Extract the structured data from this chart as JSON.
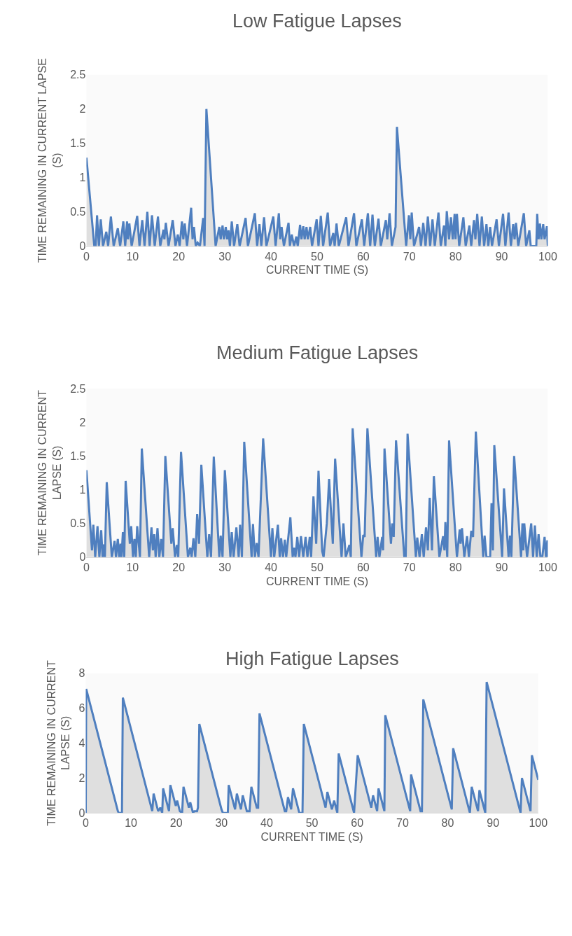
{
  "chart_data": [
    {
      "type": "area",
      "title": "Low Fatigue Lapses",
      "xlabel": "CURRENT TIME (S)",
      "ylabel": "TIME REMAINING IN CURRENT LAPSE (S)",
      "color": "#4f7fbf",
      "xlim": [
        0,
        100
      ],
      "xticks": [
        0,
        10,
        20,
        30,
        40,
        50,
        60,
        70,
        80,
        90,
        100
      ],
      "ylim": [
        0,
        2.5
      ],
      "yticks": [
        0,
        0.5,
        1,
        1.5,
        2,
        2.5
      ],
      "x": [
        0,
        1.7,
        2,
        2.3,
        2.7,
        3.1,
        3.6,
        4.3,
        4.7,
        5.3,
        5.9,
        6.8,
        7.3,
        8,
        8.4,
        8.8,
        9,
        9.3,
        9.8,
        11,
        11.5,
        12.1,
        12.6,
        13.2,
        13.7,
        14.2,
        14.8,
        15.5,
        16,
        16.7,
        16.9,
        17.2,
        17.8,
        18.7,
        19.3,
        19.8,
        20.2,
        20.7,
        21,
        21.3,
        21.8,
        22.7,
        23,
        23.3,
        23.7,
        24.1,
        24.6,
        25.3,
        25.6,
        26,
        28,
        28.8,
        29.1,
        29.5,
        29.8,
        30.2,
        30.5,
        30.8,
        31.1,
        31.5,
        32,
        32.7,
        33.2,
        34.5,
        35,
        36.5,
        37,
        37.5,
        37.9,
        38.5,
        39,
        40.5,
        41,
        41.7,
        42,
        42.3,
        42.8,
        43.8,
        44.1,
        44.5,
        45,
        45.5,
        45.8,
        46.3,
        46.6,
        47,
        47.3,
        47.7,
        48,
        48.5,
        48.9,
        49.9,
        50.3,
        50.8,
        51.3,
        52.3,
        52.8,
        53.5,
        53.8,
        54.2,
        54.7,
        56.3,
        56.8,
        58,
        58.5,
        59.7,
        60.2,
        61,
        61.5,
        62,
        62.5,
        63.3,
        63.8,
        64.9,
        65.2,
        65.7,
        66.2,
        67,
        67.3,
        69.3,
        69.9,
        70.2,
        70.5,
        71,
        72.1,
        72.5,
        73,
        73.5,
        74,
        74.5,
        75,
        75.5,
        76.3,
        76.8,
        77.5,
        77.8,
        78.1,
        78.6,
        79,
        79.4,
        79.8,
        80,
        80.3,
        80.8,
        81.7,
        82.2,
        83,
        83.4,
        84,
        84.3,
        84.7,
        85.2,
        85.7,
        86.2,
        86.7,
        87.1,
        87.5,
        87.9,
        88.9,
        89.4,
        90.3,
        90.8,
        91.5,
        92,
        92.5,
        92.8,
        93.1,
        93.6,
        94.8,
        95.3,
        96,
        96.3,
        97.5,
        97.7,
        98,
        98.3,
        98.6,
        99,
        99.3,
        99.8,
        100
      ],
      "values": [
        1.29,
        0,
        0,
        0.45,
        0,
        0.39,
        0,
        0.21,
        0,
        0.43,
        0,
        0.26,
        0,
        0.36,
        0,
        0.36,
        0.1,
        0.33,
        0,
        0.44,
        0,
        0.38,
        0,
        0.5,
        0,
        0.45,
        0,
        0.43,
        0,
        0.24,
        0.1,
        0.34,
        0,
        0.38,
        0,
        0.17,
        0,
        0.36,
        0.1,
        0.33,
        0,
        0.56,
        0.1,
        0.28,
        0,
        0.05,
        0,
        0.41,
        0,
        2.0,
        0,
        0.28,
        0.1,
        0.3,
        0.1,
        0.28,
        0.1,
        0.23,
        0,
        0.36,
        0,
        0.32,
        0,
        0.41,
        0,
        0.48,
        0,
        0.32,
        0,
        0.42,
        0,
        0.43,
        0,
        0.48,
        0.1,
        0.28,
        0,
        0.34,
        0,
        0.17,
        0,
        0.14,
        0,
        0.31,
        0.1,
        0.29,
        0.1,
        0.28,
        0.1,
        0.28,
        0,
        0.39,
        0,
        0.44,
        0,
        0.49,
        0,
        0.19,
        0,
        0.33,
        0,
        0.42,
        0,
        0.48,
        0,
        0.39,
        0,
        0.48,
        0,
        0.46,
        0,
        0.4,
        0,
        0.38,
        0.1,
        0.48,
        0,
        0.28,
        1.74,
        0,
        0.45,
        0.1,
        0.49,
        0,
        0.28,
        0,
        0.34,
        0,
        0.43,
        0,
        0.39,
        0,
        0.49,
        0,
        0.3,
        0,
        0.51,
        0.1,
        0.42,
        0.1,
        0.47,
        0.1,
        0.47,
        0,
        0.42,
        0,
        0.3,
        0,
        0.38,
        0.1,
        0.47,
        0,
        0.43,
        0,
        0.32,
        0,
        0.28,
        0,
        0.39,
        0,
        0.47,
        0,
        0.49,
        0,
        0.32,
        0.1,
        0.34,
        0,
        0.48,
        0,
        0.23,
        0,
        0,
        0.47,
        0.1,
        0.33,
        0.1,
        0.32,
        0.1,
        0.29,
        0
      ]
    },
    {
      "type": "area",
      "title": "Medium Fatigue Lapses",
      "xlabel": "CURRENT TIME (S)",
      "ylabel": "TIME REMAINING IN CURRENT LAPSE (S)",
      "color": "#4f7fbf",
      "xlim": [
        0,
        100
      ],
      "xticks": [
        0,
        10,
        20,
        30,
        40,
        50,
        60,
        70,
        80,
        90,
        100
      ],
      "ylim": [
        0,
        2.5
      ],
      "yticks": [
        0,
        0.5,
        1,
        1.5,
        2,
        2.5
      ],
      "x": [
        0,
        1.2,
        1.5,
        1.9,
        2.4,
        2.8,
        3.2,
        3.5,
        3.7,
        4,
        4.4,
        5.5,
        6.1,
        6.4,
        6.8,
        7.1,
        7.4,
        7.6,
        7.9,
        8.2,
        8.5,
        9.4,
        9.7,
        10.1,
        10.4,
        10.7,
        11,
        11.6,
        12,
        13.6,
        14.1,
        14.4,
        14.7,
        15,
        15.4,
        15.8,
        16.2,
        16.6,
        17.1,
        18.4,
        18.7,
        19.2,
        19.6,
        19.9,
        20.5,
        22,
        22.5,
        22.8,
        23.2,
        23.6,
        24,
        24.4,
        24.9,
        26.2,
        26.6,
        27,
        27.6,
        28.8,
        29.1,
        29.5,
        30,
        31.2,
        31.5,
        31.9,
        32.5,
        33,
        33.3,
        33.7,
        34.2,
        35.8,
        36.1,
        36.5,
        36.9,
        37.3,
        38.3,
        40,
        40.3,
        40.7,
        41.5,
        41.9,
        42.2,
        42.6,
        43,
        43.3,
        44.2,
        44.7,
        45,
        45.3,
        45.7,
        46.1,
        46.5,
        47,
        47.5,
        47.9,
        48.4,
        48.7,
        49.2,
        49.8,
        50.3,
        51.1,
        51.4,
        52.1,
        52.6,
        53.4,
        53.9,
        55.3,
        55.7,
        56.2,
        57,
        57.3,
        57.7,
        59.6,
        60,
        60.3,
        60.9,
        62.8,
        63.1,
        63.5,
        64.1,
        64.3,
        64.6,
        66,
        66.3,
        66.6,
        67.1,
        68.9,
        69.2,
        69.6,
        71.4,
        71.7,
        72.2,
        72.7,
        73.1,
        73.6,
        74,
        74.4,
        74.9,
        75.3,
        76.5,
        77.3,
        77.6,
        77.8,
        78.2,
        78.6,
        80.3,
        80.9,
        81.1,
        81.4,
        81.9,
        82.5,
        82.9,
        83.4,
        83.8,
        84.4,
        86,
        86.3,
        86.7,
        87.5,
        87.8,
        88.1,
        88.4,
        90.1,
        90.5,
        91.5,
        91.8,
        92.1,
        92.7,
        94.2,
        94.5,
        94.7,
        94.9,
        95.5,
        96.4,
        96.8,
        97.2,
        97.6,
        98,
        98.4,
        98.8,
        99.3,
        99.6,
        99.9,
        100
      ],
      "values": [
        1.29,
        0.1,
        0.48,
        0,
        0.46,
        0,
        0.4,
        0,
        0.19,
        0,
        1.11,
        0,
        0.24,
        0,
        0.27,
        0,
        0.2,
        0,
        0.37,
        0,
        1.13,
        0.2,
        0.46,
        0,
        0.27,
        0,
        0.46,
        0,
        1.61,
        0,
        0.44,
        0.1,
        0.34,
        0,
        0.43,
        0,
        0.27,
        0,
        1.5,
        0.2,
        0.43,
        0,
        0.18,
        0,
        1.56,
        0,
        0.14,
        0,
        0.28,
        0,
        0.64,
        0.2,
        1.37,
        0,
        0.34,
        0,
        1.49,
        0,
        0.32,
        0,
        1.29,
        0,
        0.37,
        0,
        0.44,
        0,
        0.48,
        0,
        1.71,
        0,
        0.49,
        0,
        0.21,
        0,
        1.76,
        0,
        0.43,
        0,
        0.48,
        0,
        0.28,
        0,
        0.26,
        0,
        0.59,
        0,
        0.14,
        0,
        0.3,
        0,
        0.31,
        0,
        0.3,
        0,
        0.3,
        0,
        0.9,
        0.2,
        1.28,
        0.09,
        0,
        0.5,
        1.16,
        0.2,
        1.46,
        0,
        0.5,
        0,
        0.18,
        0,
        1.91,
        0,
        0.33,
        0.3,
        1.91,
        0,
        0.3,
        0,
        0.3,
        0.1,
        1.61,
        0.2,
        0.5,
        0.3,
        1.73,
        0,
        0,
        1.83,
        0,
        0.29,
        0,
        0.34,
        0,
        0.44,
        0.1,
        0.88,
        0.1,
        1.2,
        0,
        0.31,
        0.1,
        0.52,
        0,
        1.73,
        0,
        0.41,
        0.2,
        0.43,
        0,
        0.31,
        0,
        0.39,
        0.3,
        1.86,
        0,
        0.32,
        0,
        0,
        0.8,
        0.1,
        1.66,
        0,
        1.02,
        0,
        0.32,
        0,
        1.5,
        0,
        0.5,
        0.1,
        0.5,
        0,
        0.5,
        0,
        0.47,
        0,
        0.34,
        0,
        0,
        0.3,
        0,
        0.25,
        0
      ]
    },
    {
      "type": "area",
      "title": "High Fatigue Lapses",
      "xlabel": "CURRENT TIME (S)",
      "ylabel": "TIME REMAINING IN CURRENT LAPSE (S)",
      "color": "#4f7fbf",
      "xlim": [
        0,
        100
      ],
      "xticks": [
        0,
        10,
        20,
        30,
        40,
        50,
        60,
        70,
        80,
        90,
        100
      ],
      "ylim": [
        0,
        8
      ],
      "yticks": [
        0,
        2,
        4,
        6,
        8
      ],
      "x": [
        0,
        0.1,
        7.1,
        7.3,
        8,
        8.2,
        14.7,
        15,
        15.8,
        16,
        16.5,
        16.9,
        17.1,
        18.4,
        18.7,
        19.9,
        20.2,
        20.8,
        21.3,
        21.6,
        22.8,
        23.1,
        23.7,
        24,
        24.6,
        24.8,
        25.1,
        30,
        30.3,
        31.4,
        31.6,
        33,
        33.4,
        34.3,
        34.7,
        35.6,
        36.2,
        36.6,
        37.8,
        38.1,
        38.4,
        44,
        44.3,
        44.7,
        45.4,
        45.8,
        47.2,
        47.9,
        48.2,
        53,
        53.4,
        54.4,
        54.9,
        55.6,
        55.9,
        59.3,
        60.1,
        63.1,
        63.5,
        64.4,
        64.7,
        66,
        66.2,
        71.7,
        71.9,
        74,
        74.3,
        74.6,
        80.9,
        81.2,
        84.9,
        85.3,
        86.7,
        87,
        88.3,
        88.6,
        95.9,
        96.1,
        96.4,
        98.3,
        98.6,
        100
      ],
      "values": [
        0,
        7.1,
        0.1,
        0,
        0,
        6.6,
        0.1,
        1.1,
        0.3,
        0.1,
        0.3,
        0,
        1.4,
        0.1,
        1.6,
        0.4,
        0.7,
        0.1,
        0,
        1.5,
        0.3,
        0.6,
        0,
        0.1,
        0.1,
        0.3,
        5.1,
        0.2,
        0,
        0,
        1.6,
        0.2,
        1.1,
        0.2,
        1.0,
        0.1,
        0.1,
        1.5,
        0.3,
        0.3,
        5.7,
        0.1,
        0.1,
        0.9,
        0.2,
        1.4,
        0,
        0,
        5.1,
        0.3,
        1.2,
        0.2,
        0.7,
        0,
        3.4,
        0,
        3.3,
        0.3,
        1.0,
        0.1,
        1.4,
        0.1,
        5.6,
        0.1,
        2.2,
        0.1,
        0.1,
        6.5,
        0.2,
        3.7,
        0,
        1.5,
        0.1,
        1.3,
        0,
        7.5,
        0.2,
        0,
        2.0,
        0.1,
        3.3,
        1.9
      ]
    }
  ]
}
